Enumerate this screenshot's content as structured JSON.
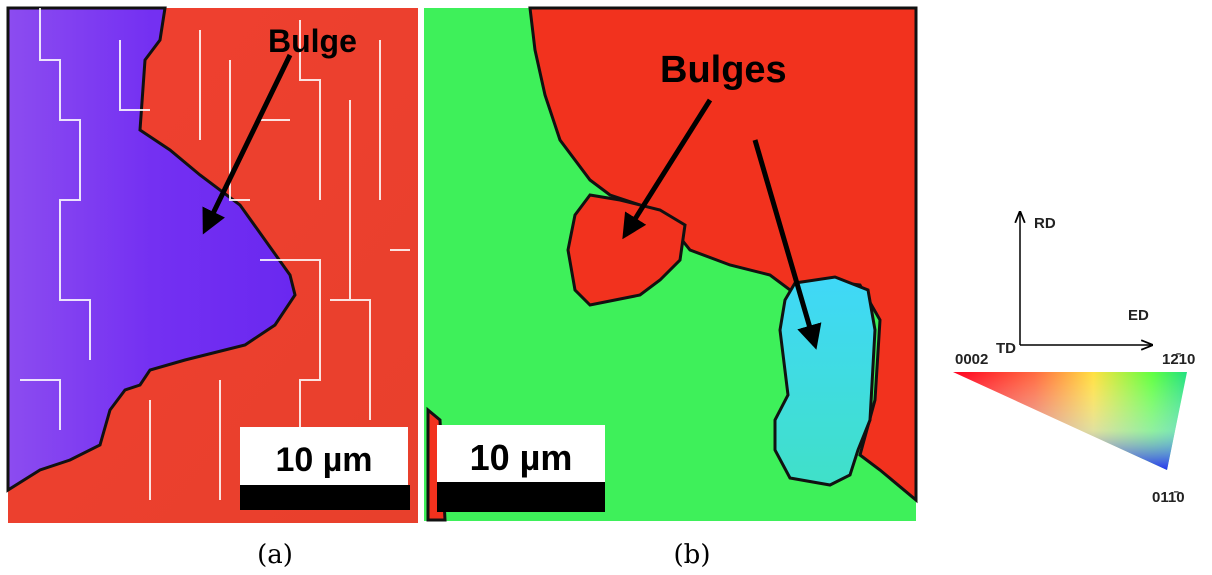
{
  "panels": [
    {
      "annotation": "Bulge",
      "scale_bar": "10 µm",
      "caption": "(a)"
    },
    {
      "annotation": "Bulges",
      "scale_bar": "10 µm",
      "caption": "(b)"
    }
  ],
  "legend": {
    "axes": [
      "RD",
      "ED",
      "TD"
    ],
    "ipf_corners": [
      "0002",
      "12̄10",
      "011̄0"
    ]
  }
}
